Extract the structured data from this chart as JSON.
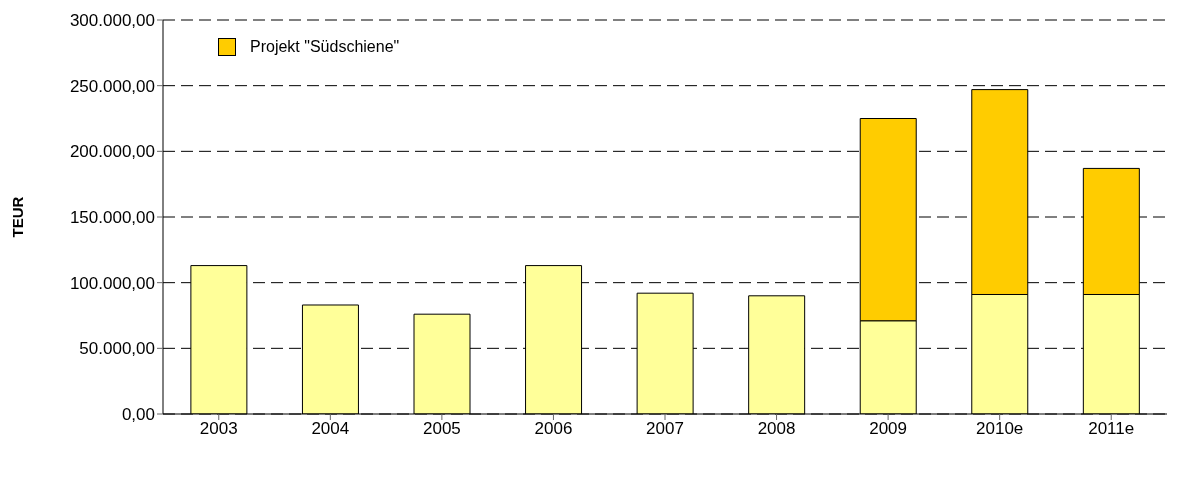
{
  "chart_data": {
    "type": "bar",
    "ylabel": "TEUR",
    "categories": [
      "2003",
      "2004",
      "2005",
      "2006",
      "2007",
      "2008",
      "2009",
      "2010e",
      "2011e"
    ],
    "stacked": true,
    "series": [
      {
        "color": "#ffff99",
        "values": [
          113000,
          83000,
          76000,
          113000,
          92000,
          90000,
          71000,
          91000,
          91000
        ]
      },
      {
        "name": "Projekt \"Südschiene\"",
        "color": "#ffcc00",
        "values": [
          null,
          null,
          null,
          null,
          null,
          null,
          154000,
          156000,
          96000
        ]
      }
    ],
    "ylim": [
      0,
      300000
    ],
    "yticks": [
      {
        "value": 0,
        "label": "0,00"
      },
      {
        "value": 50000,
        "label": "50.000,00"
      },
      {
        "value": 100000,
        "label": "100.000,00"
      },
      {
        "value": 150000,
        "label": "150.000,00"
      },
      {
        "value": 200000,
        "label": "200.000,00"
      },
      {
        "value": 250000,
        "label": "250.000,00"
      },
      {
        "value": 300000,
        "label": "300.000,00"
      }
    ],
    "grid": "y",
    "legend": "top left"
  }
}
